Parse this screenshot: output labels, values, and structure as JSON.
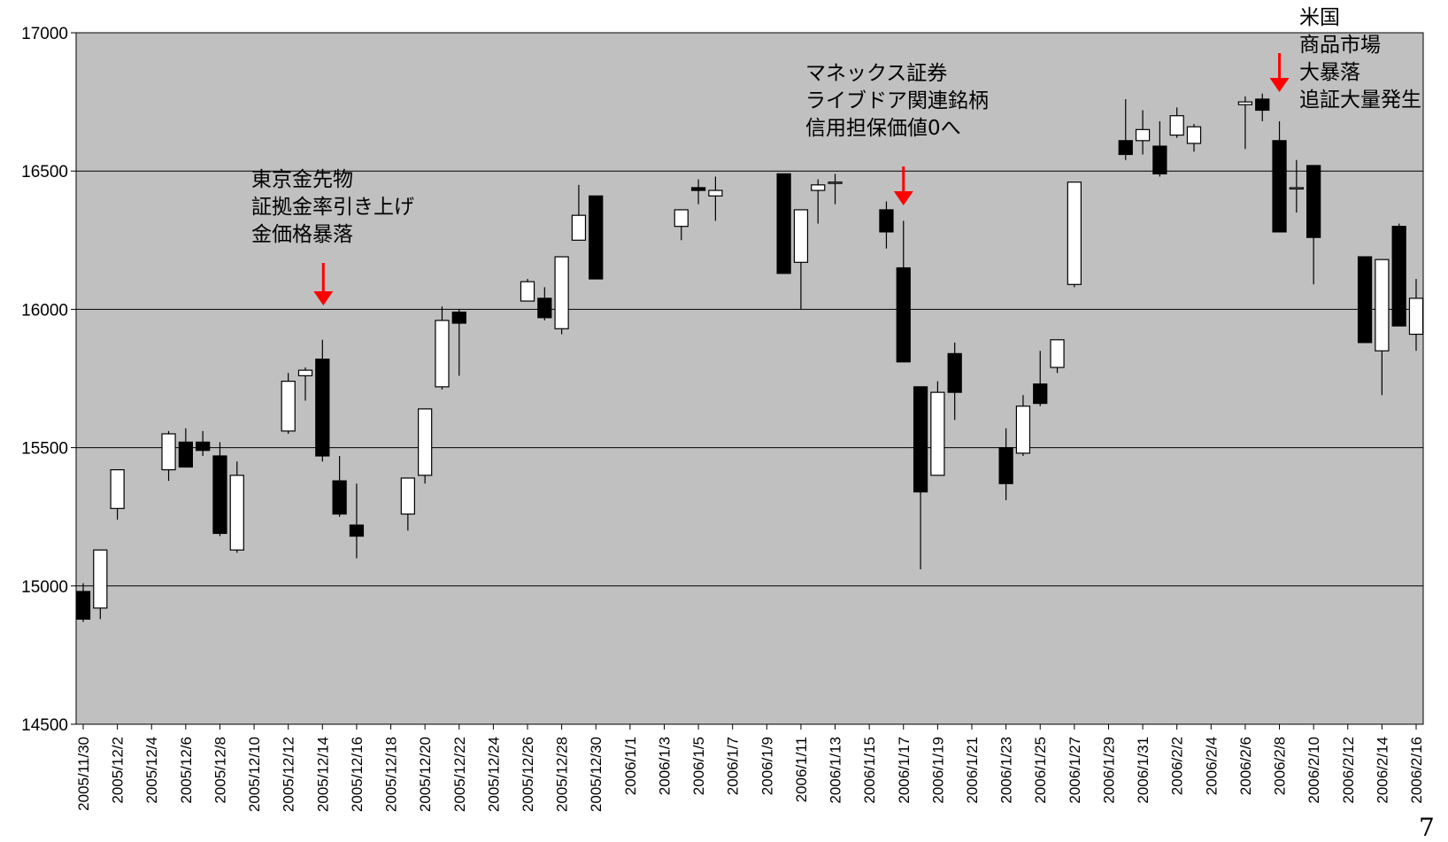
{
  "chart_data": {
    "type": "candlestick",
    "title": "",
    "xlabel": "",
    "ylabel": "",
    "ylim": [
      14500,
      17000
    ],
    "yticks": [
      14500,
      15000,
      15500,
      16000,
      16500,
      17000
    ],
    "x_start": "2005-11-30",
    "x_end": "2006-02-16",
    "x_tick_labels": [
      "2005/11/30",
      "2005/12/2",
      "2005/12/4",
      "2005/12/6",
      "2005/12/8",
      "2005/12/10",
      "2005/12/12",
      "2005/12/14",
      "2005/12/16",
      "2005/12/18",
      "2005/12/20",
      "2005/12/22",
      "2005/12/24",
      "2005/12/26",
      "2005/12/28",
      "2005/12/30",
      "2006/1/1",
      "2006/1/3",
      "2006/1/5",
      "2006/1/7",
      "2006/1/9",
      "2006/1/11",
      "2006/1/13",
      "2006/1/15",
      "2006/1/17",
      "2006/1/19",
      "2006/1/21",
      "2006/1/23",
      "2006/1/25",
      "2006/1/27",
      "2006/1/29",
      "2006/1/31",
      "2006/2/2",
      "2006/2/4",
      "2006/2/6",
      "2006/2/8",
      "2006/2/10",
      "2006/2/12",
      "2006/2/14",
      "2006/2/16"
    ],
    "grid": true,
    "plot_background": "#c0c0c0",
    "up_color": "#ffffff",
    "down_color": "#000000",
    "candles": [
      {
        "date": "2005-11-30",
        "open": 14980,
        "high": 15010,
        "low": 14870,
        "close": 14880
      },
      {
        "date": "2005-12-01",
        "open": 14920,
        "high": 15130,
        "low": 14880,
        "close": 15130
      },
      {
        "date": "2005-12-02",
        "open": 15280,
        "high": 15420,
        "low": 15240,
        "close": 15420
      },
      {
        "date": "2005-12-05",
        "open": 15420,
        "high": 15560,
        "low": 15380,
        "close": 15550
      },
      {
        "date": "2005-12-06",
        "open": 15520,
        "high": 15570,
        "low": 15430,
        "close": 15430
      },
      {
        "date": "2005-12-07",
        "open": 15520,
        "high": 15560,
        "low": 15470,
        "close": 15490
      },
      {
        "date": "2005-12-08",
        "open": 15470,
        "high": 15520,
        "low": 15180,
        "close": 15190
      },
      {
        "date": "2005-12-09",
        "open": 15130,
        "high": 15450,
        "low": 15120,
        "close": 15400
      },
      {
        "date": "2005-12-12",
        "open": 15560,
        "high": 15770,
        "low": 15550,
        "close": 15740
      },
      {
        "date": "2005-12-13",
        "open": 15760,
        "high": 15790,
        "low": 15670,
        "close": 15780
      },
      {
        "date": "2005-12-14",
        "open": 15820,
        "high": 15890,
        "low": 15450,
        "close": 15470
      },
      {
        "date": "2005-12-15",
        "open": 15380,
        "high": 15470,
        "low": 15250,
        "close": 15260
      },
      {
        "date": "2005-12-16",
        "open": 15220,
        "high": 15370,
        "low": 15100,
        "close": 15180
      },
      {
        "date": "2005-12-19",
        "open": 15260,
        "high": 15390,
        "low": 15200,
        "close": 15390
      },
      {
        "date": "2005-12-20",
        "open": 15400,
        "high": 15640,
        "low": 15370,
        "close": 15640
      },
      {
        "date": "2005-12-21",
        "open": 15720,
        "high": 16010,
        "low": 15710,
        "close": 15960
      },
      {
        "date": "2005-12-22",
        "open": 15990,
        "high": 16000,
        "low": 15760,
        "close": 15950
      },
      {
        "date": "2005-12-26",
        "open": 16030,
        "high": 16110,
        "low": 16030,
        "close": 16100
      },
      {
        "date": "2005-12-27",
        "open": 16040,
        "high": 16080,
        "low": 15960,
        "close": 15970
      },
      {
        "date": "2005-12-28",
        "open": 15930,
        "high": 16190,
        "low": 15910,
        "close": 16190
      },
      {
        "date": "2005-12-29",
        "open": 16250,
        "high": 16450,
        "low": 16250,
        "close": 16340
      },
      {
        "date": "2005-12-30",
        "open": 16410,
        "high": 16410,
        "low": 16110,
        "close": 16110
      },
      {
        "date": "2006-01-04",
        "open": 16300,
        "high": 16360,
        "low": 16250,
        "close": 16360
      },
      {
        "date": "2006-01-05",
        "open": 16440,
        "high": 16470,
        "low": 16380,
        "close": 16430
      },
      {
        "date": "2006-01-06",
        "open": 16410,
        "high": 16480,
        "low": 16320,
        "close": 16430
      },
      {
        "date": "2006-01-10",
        "open": 16490,
        "high": 16490,
        "low": 16130,
        "close": 16130
      },
      {
        "date": "2006-01-11",
        "open": 16170,
        "high": 16360,
        "low": 16000,
        "close": 16360
      },
      {
        "date": "2006-01-12",
        "open": 16430,
        "high": 16470,
        "low": 16310,
        "close": 16450
      },
      {
        "date": "2006-01-13",
        "open": 16460,
        "high": 16490,
        "low": 16380,
        "close": 16460
      },
      {
        "date": "2006-01-16",
        "open": 16360,
        "high": 16390,
        "low": 16220,
        "close": 16280
      },
      {
        "date": "2006-01-17",
        "open": 16150,
        "high": 16320,
        "low": 15810,
        "close": 15810
      },
      {
        "date": "2006-01-18",
        "open": 15720,
        "high": 15720,
        "low": 15060,
        "close": 15340
      },
      {
        "date": "2006-01-19",
        "open": 15400,
        "high": 15740,
        "low": 15400,
        "close": 15700
      },
      {
        "date": "2006-01-20",
        "open": 15840,
        "high": 15880,
        "low": 15600,
        "close": 15700
      },
      {
        "date": "2006-01-23",
        "open": 15500,
        "high": 15570,
        "low": 15310,
        "close": 15370
      },
      {
        "date": "2006-01-24",
        "open": 15480,
        "high": 15690,
        "low": 15470,
        "close": 15650
      },
      {
        "date": "2006-01-25",
        "open": 15730,
        "high": 15850,
        "low": 15650,
        "close": 15660
      },
      {
        "date": "2006-01-26",
        "open": 15790,
        "high": 15890,
        "low": 15770,
        "close": 15890
      },
      {
        "date": "2006-01-27",
        "open": 16090,
        "high": 16460,
        "low": 16080,
        "close": 16460
      },
      {
        "date": "2006-01-30",
        "open": 16610,
        "high": 16760,
        "low": 16540,
        "close": 16560
      },
      {
        "date": "2006-01-31",
        "open": 16610,
        "high": 16720,
        "low": 16560,
        "close": 16650
      },
      {
        "date": "2006-02-01",
        "open": 16590,
        "high": 16680,
        "low": 16480,
        "close": 16490
      },
      {
        "date": "2006-02-02",
        "open": 16630,
        "high": 16730,
        "low": 16620,
        "close": 16700
      },
      {
        "date": "2006-02-03",
        "open": 16600,
        "high": 16670,
        "low": 16570,
        "close": 16660
      },
      {
        "date": "2006-02-06",
        "open": 16740,
        "high": 16770,
        "low": 16580,
        "close": 16750
      },
      {
        "date": "2006-02-07",
        "open": 16760,
        "high": 16780,
        "low": 16680,
        "close": 16720
      },
      {
        "date": "2006-02-08",
        "open": 16610,
        "high": 16680,
        "low": 16280,
        "close": 16280
      },
      {
        "date": "2006-02-09",
        "open": 16440,
        "high": 16540,
        "low": 16350,
        "close": 16440
      },
      {
        "date": "2006-02-10",
        "open": 16520,
        "high": 16520,
        "low": 16090,
        "close": 16260
      },
      {
        "date": "2006-02-13",
        "open": 16190,
        "high": 16190,
        "low": 15880,
        "close": 15880
      },
      {
        "date": "2006-02-14",
        "open": 15850,
        "high": 16180,
        "low": 15690,
        "close": 16180
      },
      {
        "date": "2006-02-15",
        "open": 16300,
        "high": 16310,
        "low": 15940,
        "close": 15940
      },
      {
        "date": "2006-02-16",
        "open": 15910,
        "high": 16110,
        "low": 15850,
        "close": 16040
      }
    ],
    "annotations": [
      {
        "text": "東京金先物\n証拠金率引き上げ\n金価格暴落",
        "date": "2005-12-14",
        "arrow_color": "#ff0000"
      },
      {
        "text": "マネックス証券\nライブドア関連銘柄\n信用担保価値0へ",
        "date": "2006-01-17",
        "arrow_color": "#ff0000"
      },
      {
        "text": "米国\n商品市場\n大暴落\n追証大量発生",
        "date": "2006-02-08",
        "arrow_color": "#ff0000"
      }
    ]
  },
  "page_number": "7"
}
